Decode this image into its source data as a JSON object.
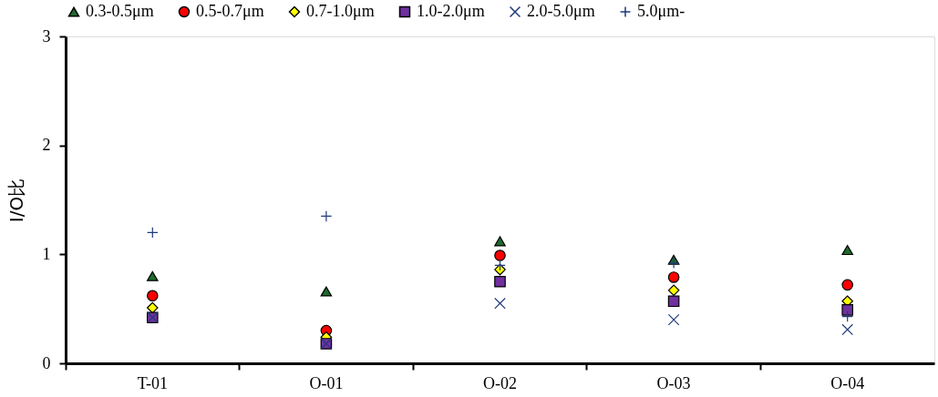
{
  "chart_data": {
    "type": "scatter",
    "ylabel": "I/O比",
    "categories": [
      "T-01",
      "O-01",
      "O-02",
      "O-03",
      "O-04"
    ],
    "ylim": [
      0,
      3
    ],
    "yticks": [
      0,
      1,
      2,
      3
    ],
    "grid": false,
    "legend": "top",
    "series": [
      {
        "name": "0.3-0.5μm",
        "color": "#1e6b2d",
        "marker": "triangle",
        "values": [
          0.8,
          0.66,
          1.12,
          0.95,
          1.04
        ]
      },
      {
        "name": "0.5-0.7μm",
        "color": "#ff0000",
        "marker": "circle",
        "values": [
          0.62,
          0.3,
          0.99,
          0.79,
          0.72
        ]
      },
      {
        "name": "0.7-1.0μm",
        "color": "#ffff00",
        "marker": "diamond",
        "values": [
          0.51,
          0.24,
          0.86,
          0.67,
          0.57
        ]
      },
      {
        "name": "1.0-2.0μm",
        "color": "#7030a0",
        "marker": "square",
        "values": [
          0.42,
          0.18,
          0.75,
          0.57,
          0.49
        ]
      },
      {
        "name": "2.0-5.0μm",
        "color": "#1f3a7a",
        "marker": "x",
        "values": [
          0.42,
          0.18,
          0.55,
          0.4,
          0.31
        ]
      },
      {
        "name": "5.0μm-",
        "color": "#1f3a7a",
        "marker": "cross",
        "values": [
          1.2,
          1.35,
          0.9,
          0.92,
          0.43
        ]
      }
    ]
  }
}
